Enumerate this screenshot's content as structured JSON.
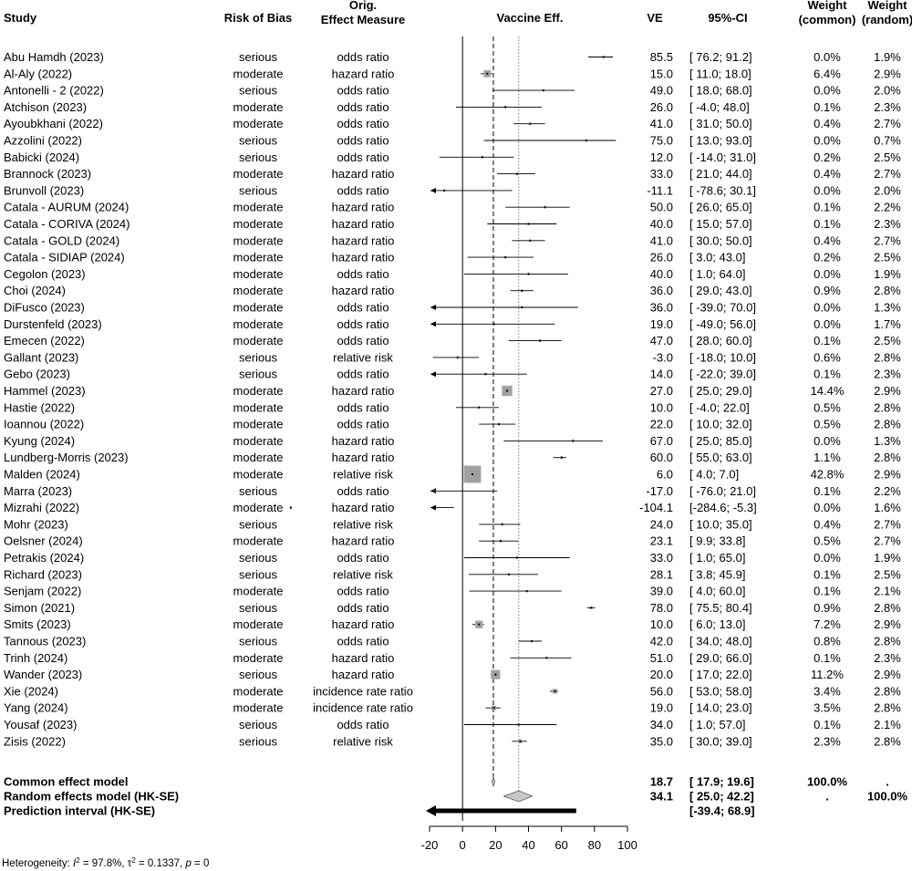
{
  "chart_data": {
    "type": "forest",
    "headers": {
      "study": "Study",
      "risk": "Risk of Bias",
      "measure": [
        "Orig.",
        "Effect Measure"
      ],
      "plot": "Vaccine Eff.",
      "ve": "VE",
      "ci": "95%-CI",
      "w_common": [
        "Weight",
        "(common)"
      ],
      "w_random": [
        "Weight",
        "(random)"
      ]
    },
    "x_ticks": [
      -20,
      0,
      20,
      40,
      60,
      80,
      100
    ],
    "x_range": [
      -20,
      100
    ],
    "ref_lines": {
      "common": 18.7,
      "random": 34.1
    },
    "studies": [
      {
        "study": "Abu Hamdh (2023)",
        "risk": "serious",
        "measure": "odds ratio",
        "ve": 85.5,
        "lo": 76.2,
        "hi": 91.2,
        "ci": "[ 76.2; 91.2]",
        "wc": "0.0%",
        "wr": "1.9%",
        "wc_num": 0.0,
        "arrow_left": false
      },
      {
        "study": "Al-Aly (2022)",
        "risk": "moderate",
        "measure": "hazard ratio",
        "ve": 15.0,
        "lo": 11.0,
        "hi": 18.0,
        "ci": "[ 11.0; 18.0]",
        "wc": "6.4%",
        "wr": "2.9%",
        "wc_num": 6.4,
        "arrow_left": false
      },
      {
        "study": "Antonelli - 2 (2022)",
        "risk": "serious",
        "measure": "odds ratio",
        "ve": 49.0,
        "lo": 18.0,
        "hi": 68.0,
        "ci": "[ 18.0; 68.0]",
        "wc": "0.0%",
        "wr": "2.0%",
        "wc_num": 0.0,
        "arrow_left": false
      },
      {
        "study": "Atchison (2023)",
        "risk": "moderate",
        "measure": "odds ratio",
        "ve": 26.0,
        "lo": -4.0,
        "hi": 48.0,
        "ci": "[ -4.0; 48.0]",
        "wc": "0.1%",
        "wr": "2.3%",
        "wc_num": 0.1,
        "arrow_left": false
      },
      {
        "study": "Ayoubkhani (2022)",
        "risk": "moderate",
        "measure": "odds ratio",
        "ve": 41.0,
        "lo": 31.0,
        "hi": 50.0,
        "ci": "[ 31.0; 50.0]",
        "wc": "0.4%",
        "wr": "2.7%",
        "wc_num": 0.4,
        "arrow_left": false
      },
      {
        "study": "Azzolini (2022)",
        "risk": "serious",
        "measure": "odds ratio",
        "ve": 75.0,
        "lo": 13.0,
        "hi": 93.0,
        "ci": "[ 13.0; 93.0]",
        "wc": "0.0%",
        "wr": "0.7%",
        "wc_num": 0.0,
        "arrow_left": false
      },
      {
        "study": "Babicki (2024)",
        "risk": "serious",
        "measure": "odds ratio",
        "ve": 12.0,
        "lo": -14.0,
        "hi": 31.0,
        "ci": "[ -14.0; 31.0]",
        "wc": "0.2%",
        "wr": "2.5%",
        "wc_num": 0.2,
        "arrow_left": false
      },
      {
        "study": "Brannock (2023)",
        "risk": "moderate",
        "measure": "hazard ratio",
        "ve": 33.0,
        "lo": 21.0,
        "hi": 44.0,
        "ci": "[ 21.0; 44.0]",
        "wc": "0.4%",
        "wr": "2.7%",
        "wc_num": 0.4,
        "arrow_left": false
      },
      {
        "study": "Brunvoll (2023)",
        "risk": "serious",
        "measure": "odds ratio",
        "ve": -11.1,
        "lo": -78.6,
        "hi": 30.1,
        "ci": "[ -78.6; 30.1]",
        "wc": "0.0%",
        "wr": "2.0%",
        "wc_num": 0.0,
        "arrow_left": true
      },
      {
        "study": "Catala - AURUM (2024)",
        "risk": "moderate",
        "measure": "hazard ratio",
        "ve": 50.0,
        "lo": 26.0,
        "hi": 65.0,
        "ci": "[ 26.0; 65.0]",
        "wc": "0.1%",
        "wr": "2.2%",
        "wc_num": 0.1,
        "arrow_left": false
      },
      {
        "study": "Catala - CORIVA (2024)",
        "risk": "moderate",
        "measure": "hazard ratio",
        "ve": 40.0,
        "lo": 15.0,
        "hi": 57.0,
        "ci": "[ 15.0; 57.0]",
        "wc": "0.1%",
        "wr": "2.3%",
        "wc_num": 0.1,
        "arrow_left": false
      },
      {
        "study": "Catala - GOLD (2024)",
        "risk": "moderate",
        "measure": "hazard ratio",
        "ve": 41.0,
        "lo": 30.0,
        "hi": 50.0,
        "ci": "[ 30.0; 50.0]",
        "wc": "0.4%",
        "wr": "2.7%",
        "wc_num": 0.4,
        "arrow_left": false
      },
      {
        "study": "Catala - SIDIAP (2024)",
        "risk": "moderate",
        "measure": "hazard ratio",
        "ve": 26.0,
        "lo": 3.0,
        "hi": 43.0,
        "ci": "[ 3.0; 43.0]",
        "wc": "0.2%",
        "wr": "2.5%",
        "wc_num": 0.2,
        "arrow_left": false
      },
      {
        "study": "Cegolon (2023)",
        "risk": "moderate",
        "measure": "odds ratio",
        "ve": 40.0,
        "lo": 1.0,
        "hi": 64.0,
        "ci": "[ 1.0; 64.0]",
        "wc": "0.0%",
        "wr": "1.9%",
        "wc_num": 0.0,
        "arrow_left": false
      },
      {
        "study": "Choi (2024)",
        "risk": "moderate",
        "measure": "hazard ratio",
        "ve": 36.0,
        "lo": 29.0,
        "hi": 43.0,
        "ci": "[ 29.0; 43.0]",
        "wc": "0.9%",
        "wr": "2.8%",
        "wc_num": 0.9,
        "arrow_left": false
      },
      {
        "study": "DiFusco (2023)",
        "risk": "moderate",
        "measure": "odds ratio",
        "ve": 36.0,
        "lo": -39.0,
        "hi": 70.0,
        "ci": "[ -39.0; 70.0]",
        "wc": "0.0%",
        "wr": "1.3%",
        "wc_num": 0.0,
        "arrow_left": true
      },
      {
        "study": "Durstenfeld (2023)",
        "risk": "moderate",
        "measure": "odds ratio",
        "ve": 19.0,
        "lo": -49.0,
        "hi": 56.0,
        "ci": "[ -49.0; 56.0]",
        "wc": "0.0%",
        "wr": "1.7%",
        "wc_num": 0.0,
        "arrow_left": true
      },
      {
        "study": "Emecen (2022)",
        "risk": "moderate",
        "measure": "odds ratio",
        "ve": 47.0,
        "lo": 28.0,
        "hi": 60.0,
        "ci": "[ 28.0; 60.0]",
        "wc": "0.1%",
        "wr": "2.5%",
        "wc_num": 0.1,
        "arrow_left": false
      },
      {
        "study": "Gallant (2023)",
        "risk": "serious",
        "measure": "relative risk",
        "ve": -3.0,
        "lo": -18.0,
        "hi": 10.0,
        "ci": "[ -18.0; 10.0]",
        "wc": "0.6%",
        "wr": "2.8%",
        "wc_num": 0.6,
        "arrow_left": false
      },
      {
        "study": "Gebo (2023)",
        "risk": "serious",
        "measure": "odds ratio",
        "ve": 14.0,
        "lo": -22.0,
        "hi": 39.0,
        "ci": "[ -22.0; 39.0]",
        "wc": "0.1%",
        "wr": "2.3%",
        "wc_num": 0.1,
        "arrow_left": true
      },
      {
        "study": "Hammel (2023)",
        "risk": "moderate",
        "measure": "hazard ratio",
        "ve": 27.0,
        "lo": 25.0,
        "hi": 29.0,
        "ci": "[ 25.0; 29.0]",
        "wc": "14.4%",
        "wr": "2.9%",
        "wc_num": 14.4,
        "arrow_left": false
      },
      {
        "study": "Hastie (2022)",
        "risk": "moderate",
        "measure": "odds ratio",
        "ve": 10.0,
        "lo": -4.0,
        "hi": 22.0,
        "ci": "[ -4.0; 22.0]",
        "wc": "0.5%",
        "wr": "2.8%",
        "wc_num": 0.5,
        "arrow_left": false
      },
      {
        "study": "Ioannou (2022)",
        "risk": "moderate",
        "measure": "odds ratio",
        "ve": 22.0,
        "lo": 10.0,
        "hi": 32.0,
        "ci": "[ 10.0; 32.0]",
        "wc": "0.5%",
        "wr": "2.8%",
        "wc_num": 0.5,
        "arrow_left": false
      },
      {
        "study": "Kyung (2024)",
        "risk": "moderate",
        "measure": "hazard ratio",
        "ve": 67.0,
        "lo": 25.0,
        "hi": 85.0,
        "ci": "[ 25.0; 85.0]",
        "wc": "0.0%",
        "wr": "1.3%",
        "wc_num": 0.0,
        "arrow_left": false
      },
      {
        "study": "Lundberg-Morris (2023)",
        "risk": "moderate",
        "measure": "hazard ratio",
        "ve": 60.0,
        "lo": 55.0,
        "hi": 63.0,
        "ci": "[ 55.0; 63.0]",
        "wc": "1.1%",
        "wr": "2.8%",
        "wc_num": 1.1,
        "arrow_left": false
      },
      {
        "study": "Malden (2024)",
        "risk": "moderate",
        "measure": "relative risk",
        "ve": 6.0,
        "lo": 4.0,
        "hi": 7.0,
        "ci": "[ 4.0; 7.0]",
        "wc": "42.8%",
        "wr": "2.9%",
        "wc_num": 42.8,
        "arrow_left": false
      },
      {
        "study": "Marra (2023)",
        "risk": "serious",
        "measure": "odds ratio",
        "ve": -17.0,
        "lo": -76.0,
        "hi": 21.0,
        "ci": "[ -76.0; 21.0]",
        "wc": "0.1%",
        "wr": "2.2%",
        "wc_num": 0.1,
        "arrow_left": true
      },
      {
        "study": "Mizrahi (2022)",
        "risk": "moderate",
        "measure": "hazard ratio",
        "ve": -104.1,
        "lo": -284.6,
        "hi": -5.3,
        "ci": "[-284.6; -5.3]",
        "wc": "0.0%",
        "wr": "1.6%",
        "wc_num": 0.0,
        "arrow_left": true
      },
      {
        "study": "Mohr (2023)",
        "risk": "serious",
        "measure": "relative risk",
        "ve": 24.0,
        "lo": 10.0,
        "hi": 35.0,
        "ci": "[ 10.0; 35.0]",
        "wc": "0.4%",
        "wr": "2.7%",
        "wc_num": 0.4,
        "arrow_left": false
      },
      {
        "study": "Oelsner (2024)",
        "risk": "moderate",
        "measure": "hazard ratio",
        "ve": 23.1,
        "lo": 9.9,
        "hi": 33.8,
        "ci": "[ 9.9; 33.8]",
        "wc": "0.5%",
        "wr": "2.7%",
        "wc_num": 0.5,
        "arrow_left": false
      },
      {
        "study": "Petrakis (2024)",
        "risk": "serious",
        "measure": "odds ratio",
        "ve": 33.0,
        "lo": 1.0,
        "hi": 65.0,
        "ci": "[ 1.0; 65.0]",
        "wc": "0.0%",
        "wr": "1.9%",
        "wc_num": 0.0,
        "arrow_left": false
      },
      {
        "study": "Richard (2023)",
        "risk": "serious",
        "measure": "relative risk",
        "ve": 28.1,
        "lo": 3.8,
        "hi": 45.9,
        "ci": "[ 3.8; 45.9]",
        "wc": "0.1%",
        "wr": "2.5%",
        "wc_num": 0.1,
        "arrow_left": false
      },
      {
        "study": "Senjam (2022)",
        "risk": "moderate",
        "measure": "odds ratio",
        "ve": 39.0,
        "lo": 4.0,
        "hi": 60.0,
        "ci": "[ 4.0; 60.0]",
        "wc": "0.1%",
        "wr": "2.1%",
        "wc_num": 0.1,
        "arrow_left": false
      },
      {
        "study": "Simon (2021)",
        "risk": "serious",
        "measure": "odds ratio",
        "ve": 78.0,
        "lo": 75.5,
        "hi": 80.4,
        "ci": "[ 75.5; 80.4]",
        "wc": "0.9%",
        "wr": "2.8%",
        "wc_num": 0.9,
        "arrow_left": false
      },
      {
        "study": "Smits (2023)",
        "risk": "moderate",
        "measure": "hazard ratio",
        "ve": 10.0,
        "lo": 6.0,
        "hi": 13.0,
        "ci": "[ 6.0; 13.0]",
        "wc": "7.2%",
        "wr": "2.9%",
        "wc_num": 7.2,
        "arrow_left": false
      },
      {
        "study": "Tannous (2023)",
        "risk": "serious",
        "measure": "odds ratio",
        "ve": 42.0,
        "lo": 34.0,
        "hi": 48.0,
        "ci": "[ 34.0; 48.0]",
        "wc": "0.8%",
        "wr": "2.8%",
        "wc_num": 0.8,
        "arrow_left": false
      },
      {
        "study": "Trinh (2024)",
        "risk": "moderate",
        "measure": "hazard ratio",
        "ve": 51.0,
        "lo": 29.0,
        "hi": 66.0,
        "ci": "[ 29.0; 66.0]",
        "wc": "0.1%",
        "wr": "2.3%",
        "wc_num": 0.1,
        "arrow_left": false
      },
      {
        "study": "Wander (2023)",
        "risk": "serious",
        "measure": "hazard ratio",
        "ve": 20.0,
        "lo": 17.0,
        "hi": 22.0,
        "ci": "[ 17.0; 22.0]",
        "wc": "11.2%",
        "wr": "2.9%",
        "wc_num": 11.2,
        "arrow_left": false
      },
      {
        "study": "Xie (2024)",
        "risk": "moderate",
        "measure": "incidence rate ratio",
        "ve": 56.0,
        "lo": 53.0,
        "hi": 58.0,
        "ci": "[ 53.0; 58.0]",
        "wc": "3.4%",
        "wr": "2.8%",
        "wc_num": 3.4,
        "arrow_left": false
      },
      {
        "study": "Yang (2024)",
        "risk": "moderate",
        "measure": "incidence rate ratio",
        "ve": 19.0,
        "lo": 14.0,
        "hi": 23.0,
        "ci": "[ 14.0; 23.0]",
        "wc": "3.5%",
        "wr": "2.8%",
        "wc_num": 3.5,
        "arrow_left": false
      },
      {
        "study": "Yousaf (2023)",
        "risk": "serious",
        "measure": "odds ratio",
        "ve": 34.0,
        "lo": 1.0,
        "hi": 57.0,
        "ci": "[ 1.0; 57.0]",
        "wc": "0.1%",
        "wr": "2.1%",
        "wc_num": 0.1,
        "arrow_left": false
      },
      {
        "study": "Zisis (2022)",
        "risk": "serious",
        "measure": "relative risk",
        "ve": 35.0,
        "lo": 30.0,
        "hi": 39.0,
        "ci": "[ 30.0; 39.0]",
        "wc": "2.3%",
        "wr": "2.8%",
        "wc_num": 2.3,
        "arrow_left": false
      }
    ],
    "summary": [
      {
        "label": "Common effect model",
        "ve": "18.7",
        "ci": "[ 17.9; 19.6]",
        "wc": "100.0%",
        "wr": ".",
        "est": 18.7,
        "lo": 17.9,
        "hi": 19.6,
        "kind": "common"
      },
      {
        "label": "Random effects model (HK-SE)",
        "ve": "34.1",
        "ci": "[ 25.0; 42.2]",
        "wc": ".",
        "wr": "100.0%",
        "est": 34.1,
        "lo": 25.0,
        "hi": 42.2,
        "kind": "random"
      },
      {
        "label": "Prediction interval (HK-SE)",
        "ve": "",
        "ci": "[-39.4; 68.9]",
        "wc": "",
        "wr": "",
        "lo": -39.4,
        "hi": 68.9,
        "kind": "prediction"
      }
    ],
    "heterogeneity": {
      "prefix": "Heterogeneity: ",
      "i2_sym": "I",
      "i2_sup": "2",
      "i2_val": " = 97.8%, ",
      "tau_sym": "τ",
      "tau_sup": "2",
      "tau_val": " = 0.1337, ",
      "p_sym": "p",
      "p_val": " = 0"
    },
    "colors": {
      "ink": "#000000",
      "box": "#a0a0a0",
      "diamond": "#c8c8c8",
      "grid": "#808080"
    }
  }
}
